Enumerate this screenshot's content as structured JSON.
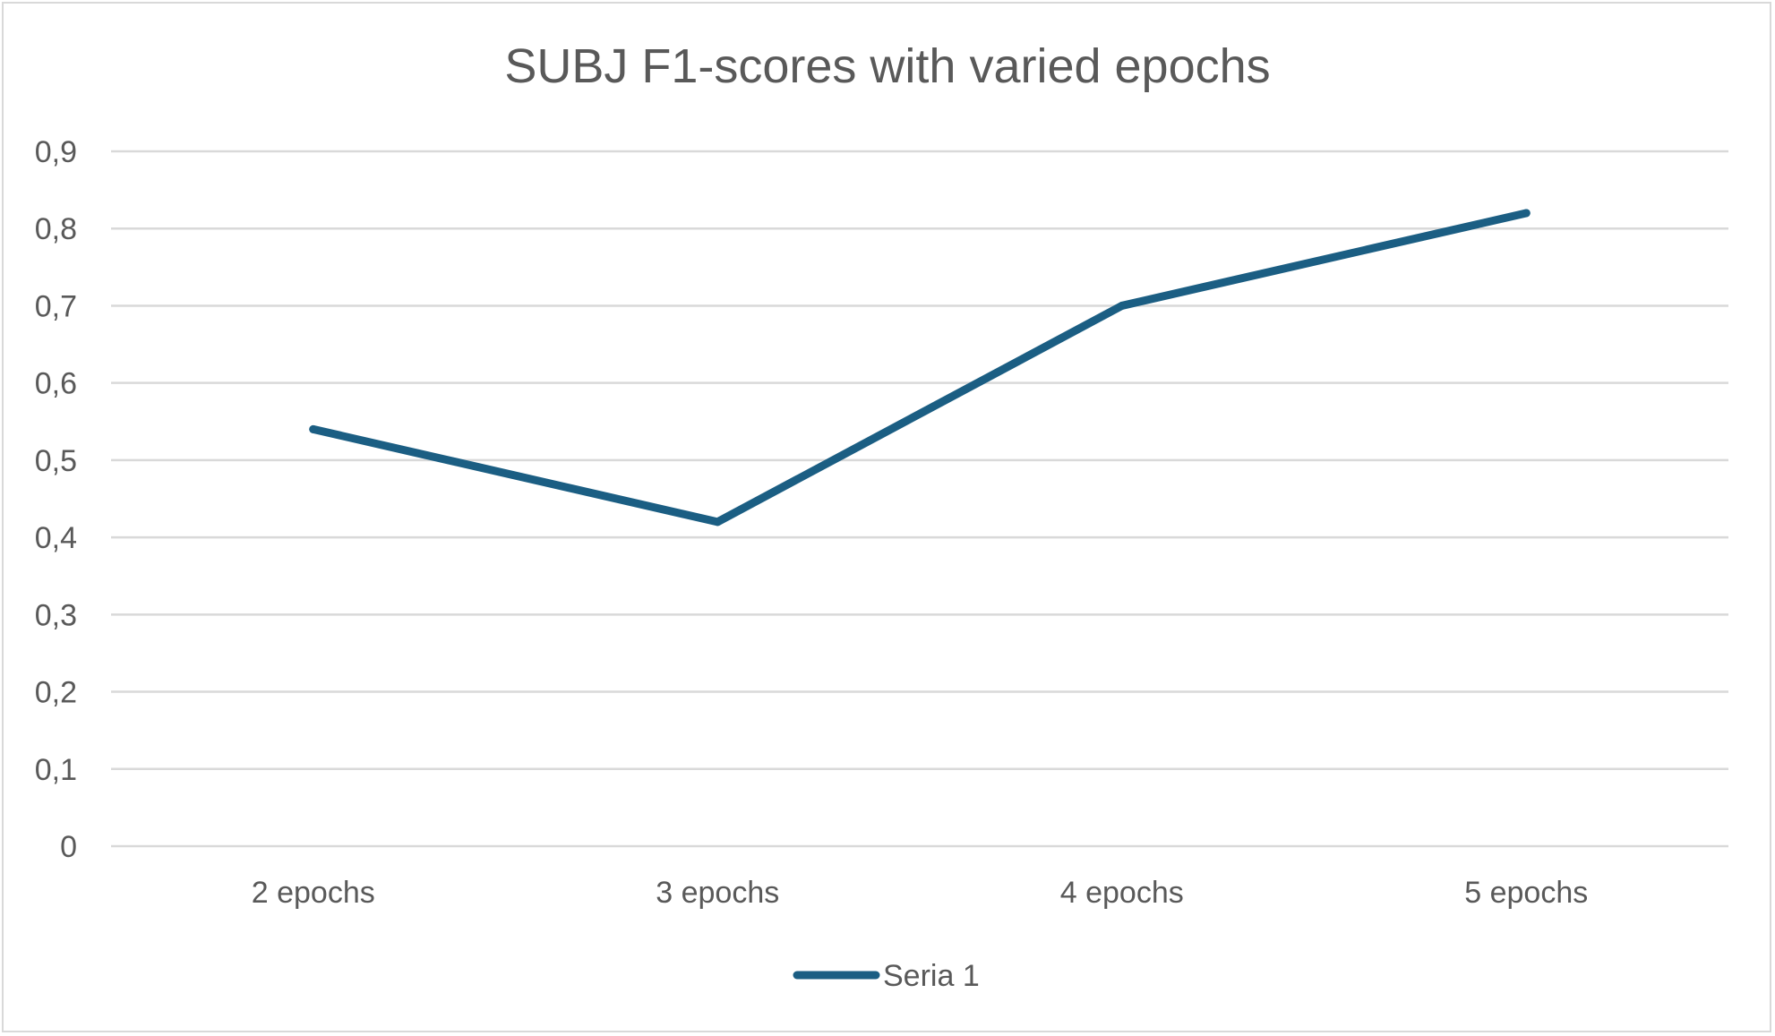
{
  "chart_data": {
    "type": "line",
    "title": "SUBJ F1-scores with varied epochs",
    "xlabel": "",
    "ylabel": "",
    "categories": [
      "2 epochs",
      "3 epochs",
      "4 epochs",
      "5 epochs"
    ],
    "series": [
      {
        "name": "Seria 1",
        "values": [
          0.54,
          0.42,
          0.7,
          0.82
        ],
        "color": "#1b5e83"
      }
    ],
    "ylim": [
      0,
      0.9
    ],
    "yticks": [
      0,
      0.1,
      0.2,
      0.3,
      0.4,
      0.5,
      0.6,
      0.7,
      0.8,
      0.9
    ],
    "ytick_labels": [
      "0",
      "0,1",
      "0,2",
      "0,3",
      "0,4",
      "0,5",
      "0,6",
      "0,7",
      "0,8",
      "0,9"
    ],
    "grid": true,
    "legend_position": "bottom",
    "colors": {
      "gridline": "#d9d9d9",
      "text": "#595959",
      "border": "#d9d9d9"
    }
  }
}
